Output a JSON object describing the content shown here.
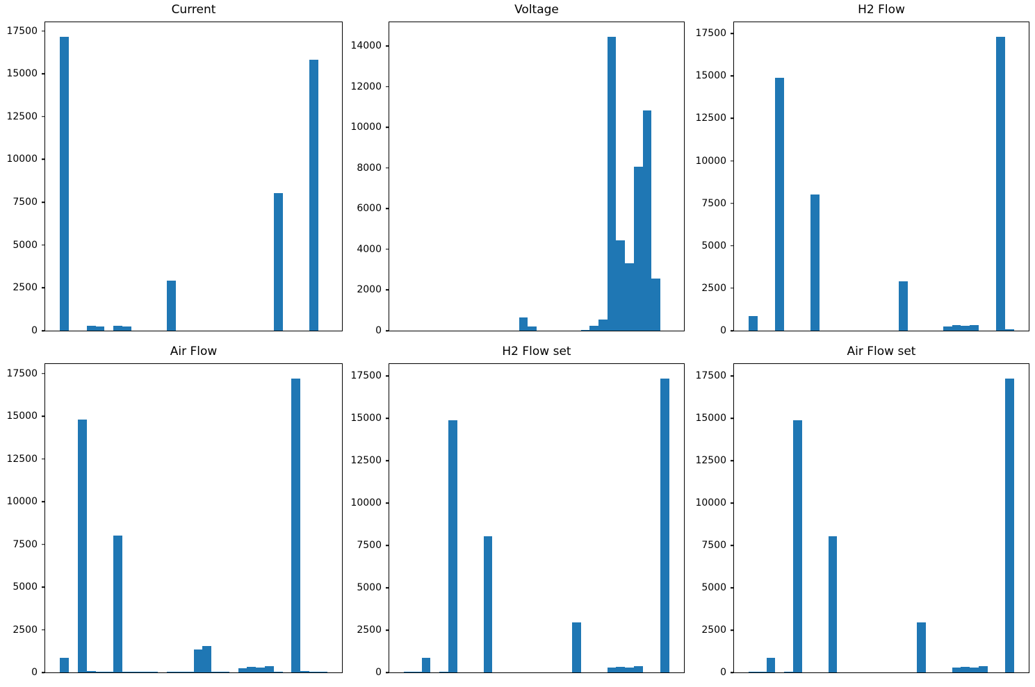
{
  "figure": {
    "background": "#ffffff",
    "bar_color": "#1f77b4",
    "axis_color": "#000000",
    "text_color": "#000000",
    "rows": 2,
    "cols": 3
  },
  "chart_data": [
    {
      "type": "bar",
      "title": "Current",
      "n_bins": 30,
      "values": [
        17150,
        0,
        0,
        300,
        250,
        0,
        300,
        230,
        0,
        0,
        0,
        0,
        2900,
        0,
        0,
        0,
        0,
        0,
        0,
        0,
        0,
        0,
        0,
        0,
        8050,
        0,
        0,
        0,
        15800,
        0
      ],
      "yticks": [
        0,
        2500,
        5000,
        7500,
        10000,
        12500,
        15000,
        17500
      ],
      "ylim": [
        0,
        18008
      ],
      "xticks": [],
      "grid": false,
      "legend": null
    },
    {
      "type": "bar",
      "title": "Voltage",
      "n_bins": 30,
      "values": [
        0,
        0,
        0,
        0,
        0,
        0,
        0,
        0,
        0,
        0,
        0,
        0,
        0,
        650,
        220,
        0,
        0,
        0,
        0,
        0,
        40,
        250,
        550,
        14450,
        4450,
        3300,
        8050,
        10850,
        2550,
        0
      ],
      "yticks": [
        0,
        2000,
        4000,
        6000,
        8000,
        10000,
        12000,
        14000
      ],
      "ylim": [
        0,
        15173
      ],
      "xticks": [],
      "grid": false,
      "legend": null
    },
    {
      "type": "bar",
      "title": "H2 Flow",
      "n_bins": 30,
      "values": [
        850,
        0,
        0,
        14900,
        0,
        0,
        0,
        8000,
        0,
        0,
        0,
        0,
        0,
        0,
        0,
        0,
        0,
        2900,
        0,
        0,
        0,
        0,
        250,
        320,
        280,
        320,
        0,
        0,
        17300,
        80
      ],
      "yticks": [
        0,
        2500,
        5000,
        7500,
        10000,
        12500,
        15000,
        17500
      ],
      "ylim": [
        0,
        18165
      ],
      "xticks": [],
      "grid": false,
      "legend": null
    },
    {
      "type": "bar",
      "title": "Air Flow",
      "n_bins": 30,
      "values": [
        850,
        0,
        14800,
        100,
        50,
        50,
        8000,
        50,
        50,
        50,
        50,
        0,
        50,
        50,
        50,
        1350,
        1550,
        50,
        50,
        0,
        250,
        320,
        280,
        350,
        50,
        0,
        17200,
        100,
        50,
        50
      ],
      "yticks": [
        0,
        2500,
        5000,
        7500,
        10000,
        12500,
        15000,
        17500
      ],
      "ylim": [
        0,
        18060
      ],
      "xticks": [],
      "grid": false,
      "legend": null
    },
    {
      "type": "bar",
      "title": "H2 Flow set",
      "n_bins": 30,
      "values": [
        60,
        60,
        850,
        0,
        60,
        14900,
        0,
        0,
        0,
        8050,
        0,
        0,
        0,
        0,
        0,
        0,
        0,
        0,
        0,
        2950,
        0,
        0,
        0,
        280,
        320,
        270,
        350,
        0,
        0,
        17350
      ],
      "yticks": [
        0,
        2500,
        5000,
        7500,
        10000,
        12500,
        15000,
        17500
      ],
      "ylim": [
        0,
        18218
      ],
      "xticks": [],
      "grid": false,
      "legend": null
    },
    {
      "type": "bar",
      "title": "Air Flow set",
      "n_bins": 30,
      "values": [
        60,
        60,
        850,
        0,
        60,
        14900,
        0,
        0,
        0,
        8050,
        0,
        0,
        0,
        0,
        0,
        0,
        0,
        0,
        0,
        2950,
        0,
        0,
        0,
        280,
        320,
        270,
        350,
        0,
        0,
        17350
      ],
      "yticks": [
        0,
        2500,
        5000,
        7500,
        10000,
        12500,
        15000,
        17500
      ],
      "ylim": [
        0,
        18218
      ],
      "xticks": [],
      "grid": false,
      "legend": null
    }
  ]
}
